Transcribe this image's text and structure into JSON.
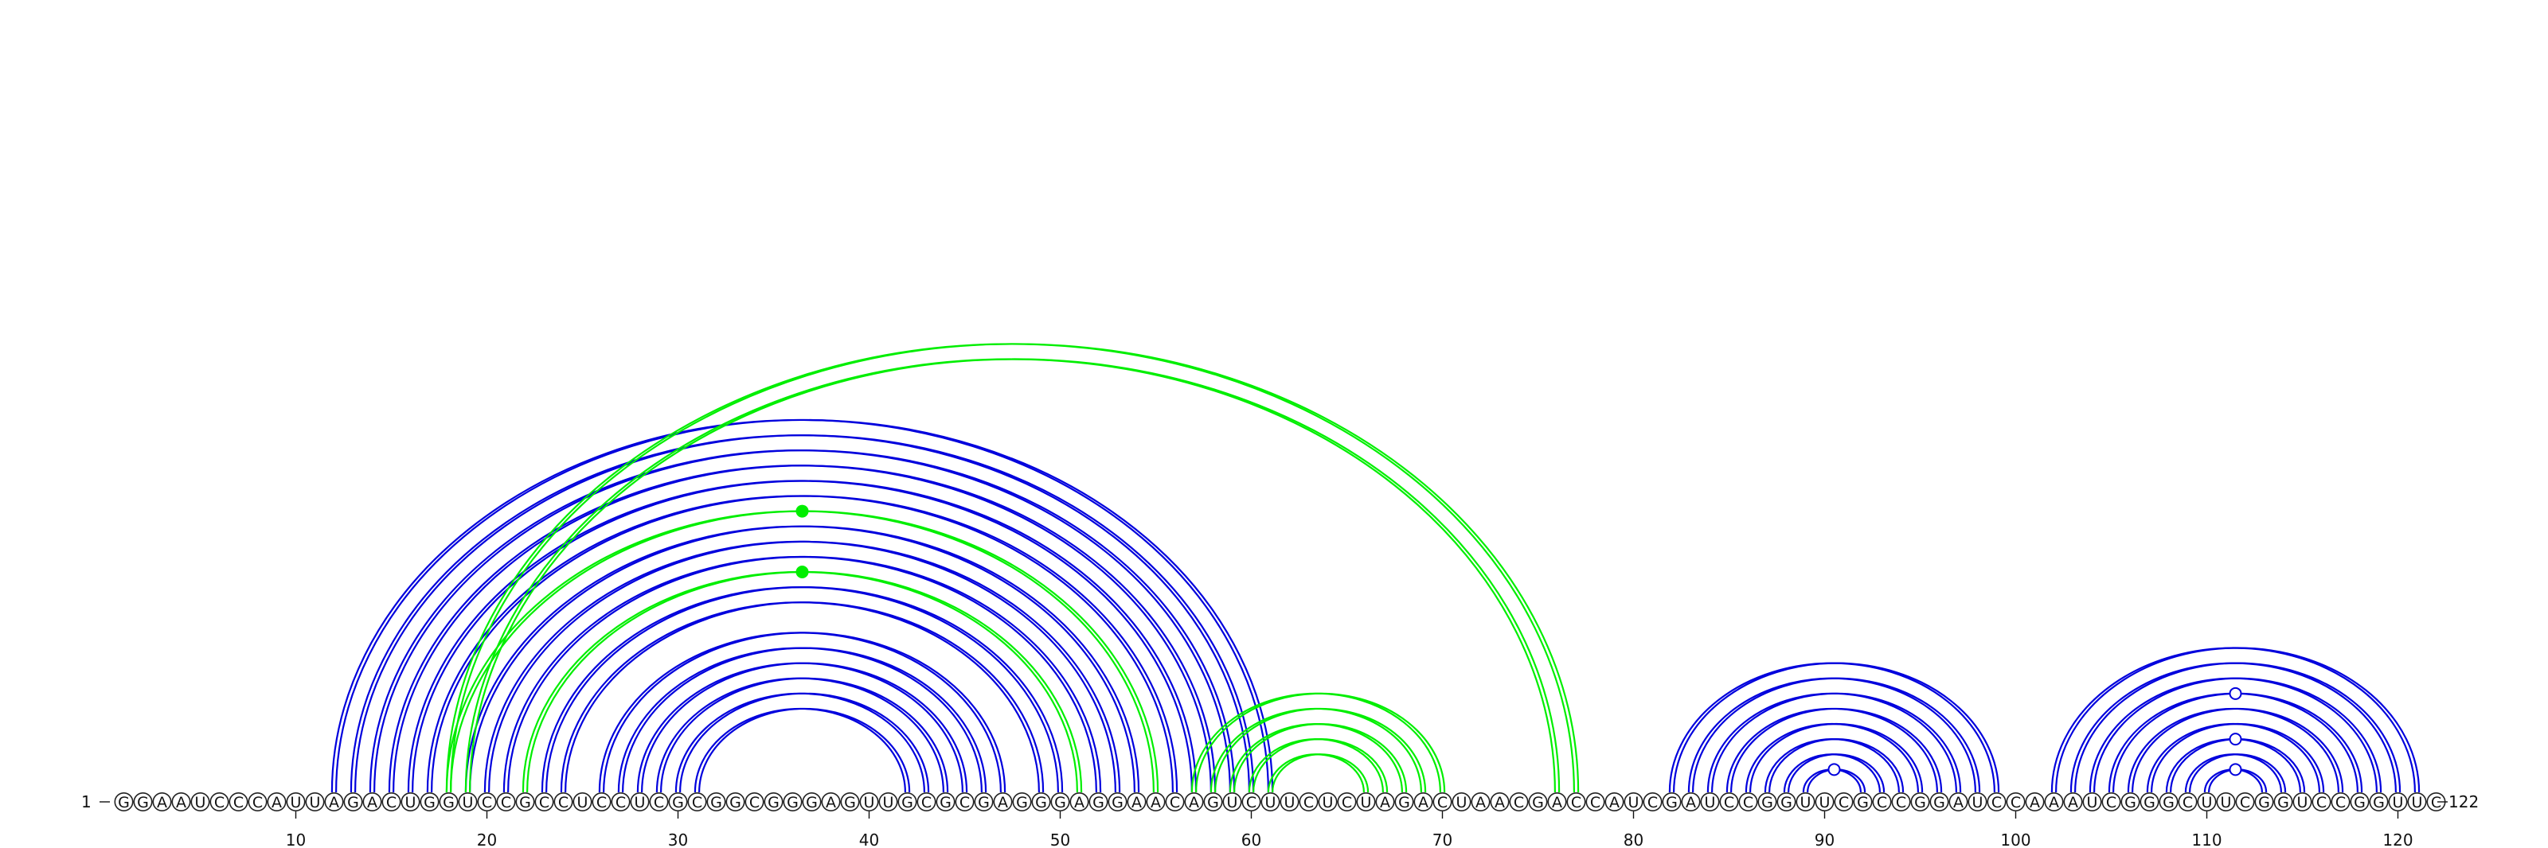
{
  "sequence": "GGAAUCCCAUUAGACUGGUCCGCCUCCUCGCGGCGGGAGUUGCGCGAGGGAGGAACAGUCUUCUCUAGACUAACGACCAUCGAUCCGGUUCGCCGGAUCCAAAUCGGGCUUCGGUCCGGUUC",
  "start_label": "1",
  "end_label": "122",
  "tick_labels": [
    "10",
    "20",
    "30",
    "40",
    "50",
    "60",
    "70",
    "80",
    "90",
    "100",
    "110",
    "120"
  ],
  "colors": {
    "primary_arc": "#0000dd",
    "alternate_arc": "#00ee00",
    "nucleotide_stroke": "#222222"
  },
  "chart_data": {
    "type": "arc-diagram",
    "sequence_length": 122,
    "structures": [
      {
        "color": "#0000dd",
        "helices": [
          {
            "i": 12,
            "j": 61,
            "len": 1
          },
          {
            "i": 13,
            "j": 60,
            "len": 1
          },
          {
            "i": 14,
            "j": 59,
            "len": 1
          },
          {
            "i": 15,
            "j": 58,
            "len": 1
          },
          {
            "i": 16,
            "j": 57,
            "len": 1
          },
          {
            "i": 17,
            "j": 56,
            "len": 1
          },
          {
            "i": 19,
            "j": 54,
            "len": 1
          },
          {
            "i": 20,
            "j": 53,
            "len": 1
          },
          {
            "i": 21,
            "j": 52,
            "len": 1
          },
          {
            "i": 23,
            "j": 50,
            "len": 1
          },
          {
            "i": 24,
            "j": 49,
            "len": 1
          },
          {
            "i": 26,
            "j": 47,
            "len": 1
          },
          {
            "i": 27,
            "j": 46,
            "len": 1
          },
          {
            "i": 28,
            "j": 45,
            "len": 1
          },
          {
            "i": 29,
            "j": 44,
            "len": 1
          },
          {
            "i": 30,
            "j": 43,
            "len": 1
          },
          {
            "i": 31,
            "j": 42,
            "len": 1
          },
          {
            "i": 82,
            "j": 99,
            "len": 1
          },
          {
            "i": 83,
            "j": 98,
            "len": 1
          },
          {
            "i": 84,
            "j": 97,
            "len": 1
          },
          {
            "i": 85,
            "j": 96,
            "len": 1
          },
          {
            "i": 86,
            "j": 95,
            "len": 1
          },
          {
            "i": 87,
            "j": 94,
            "len": 1
          },
          {
            "i": 88,
            "j": 93,
            "len": 1
          },
          {
            "i": 89,
            "j": 92,
            "len": 1
          },
          {
            "i": 102,
            "j": 121,
            "len": 1
          },
          {
            "i": 103,
            "j": 120,
            "len": 1
          },
          {
            "i": 104,
            "j": 119,
            "len": 1
          },
          {
            "i": 105,
            "j": 118,
            "len": 1
          },
          {
            "i": 106,
            "j": 117,
            "len": 1
          },
          {
            "i": 107,
            "j": 116,
            "len": 1
          },
          {
            "i": 108,
            "j": 115,
            "len": 1
          },
          {
            "i": 109,
            "j": 114,
            "len": 1
          },
          {
            "i": 110,
            "j": 113,
            "len": 1
          }
        ]
      },
      {
        "color": "#00ee00",
        "helices": [
          {
            "i": 18,
            "j": 77,
            "len": 1
          },
          {
            "i": 19,
            "j": 76,
            "len": 1
          },
          {
            "i": 22,
            "j": 51,
            "len": 1
          },
          {
            "i": 18,
            "j": 55,
            "len": 1
          },
          {
            "i": 57,
            "j": 70,
            "len": 1
          },
          {
            "i": 58,
            "j": 69,
            "len": 1
          },
          {
            "i": 59,
            "j": 68,
            "len": 1
          },
          {
            "i": 60,
            "j": 67,
            "len": 1
          },
          {
            "i": 61,
            "j": 66,
            "len": 1
          }
        ]
      }
    ],
    "markers": [
      {
        "pair": [
          22,
          51
        ],
        "fill": "#00ee00"
      },
      {
        "pair": [
          18,
          55
        ],
        "fill": "#00ee00"
      },
      {
        "pair": [
          89,
          92
        ],
        "fill": "#ffffff"
      },
      {
        "pair": [
          110,
          113
        ],
        "fill": "#ffffff"
      },
      {
        "pair": [
          108,
          115
        ],
        "fill": "#ffffff"
      },
      {
        "pair": [
          105,
          118
        ],
        "fill": "#ffffff"
      }
    ]
  }
}
